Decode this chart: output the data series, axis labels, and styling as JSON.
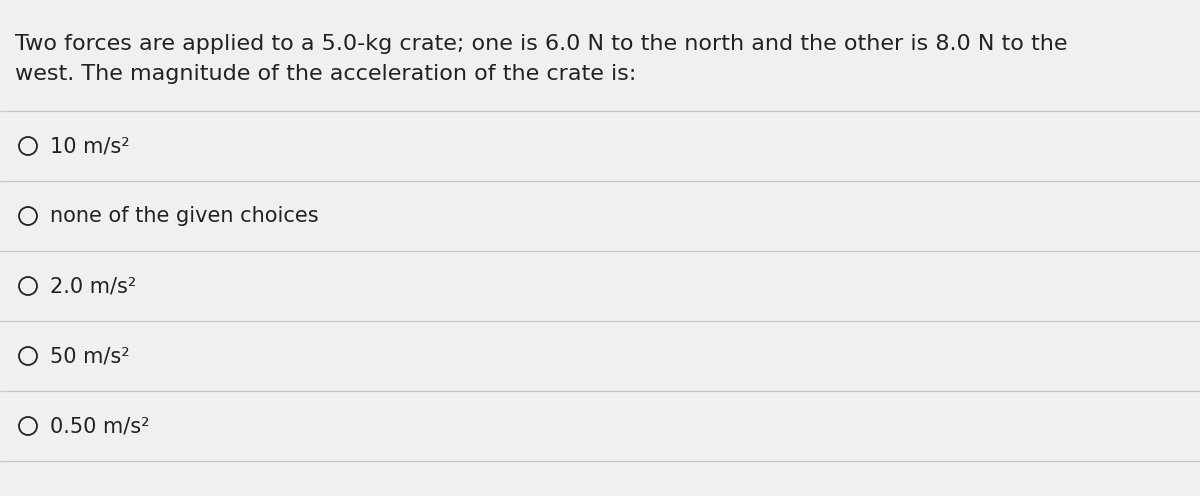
{
  "background_color": "#f0f0f0",
  "question_text_line1": "Two forces are applied to a 5.0-kg crate; one is 6.0 N to the north and the other is 8.0 N to the",
  "question_text_line2": "west. The magnitude of the acceleration of the crate is:",
  "choices": [
    "10 m/s²",
    "none of the given choices",
    "2.0 m/s²",
    "50 m/s²",
    "0.50 m/s²"
  ],
  "text_color": "#222222",
  "line_color": "#c8c8c8",
  "font_size_question": 16.0,
  "font_size_choices": 15.0,
  "fig_width": 12.0,
  "fig_height": 4.96,
  "dpi": 100
}
